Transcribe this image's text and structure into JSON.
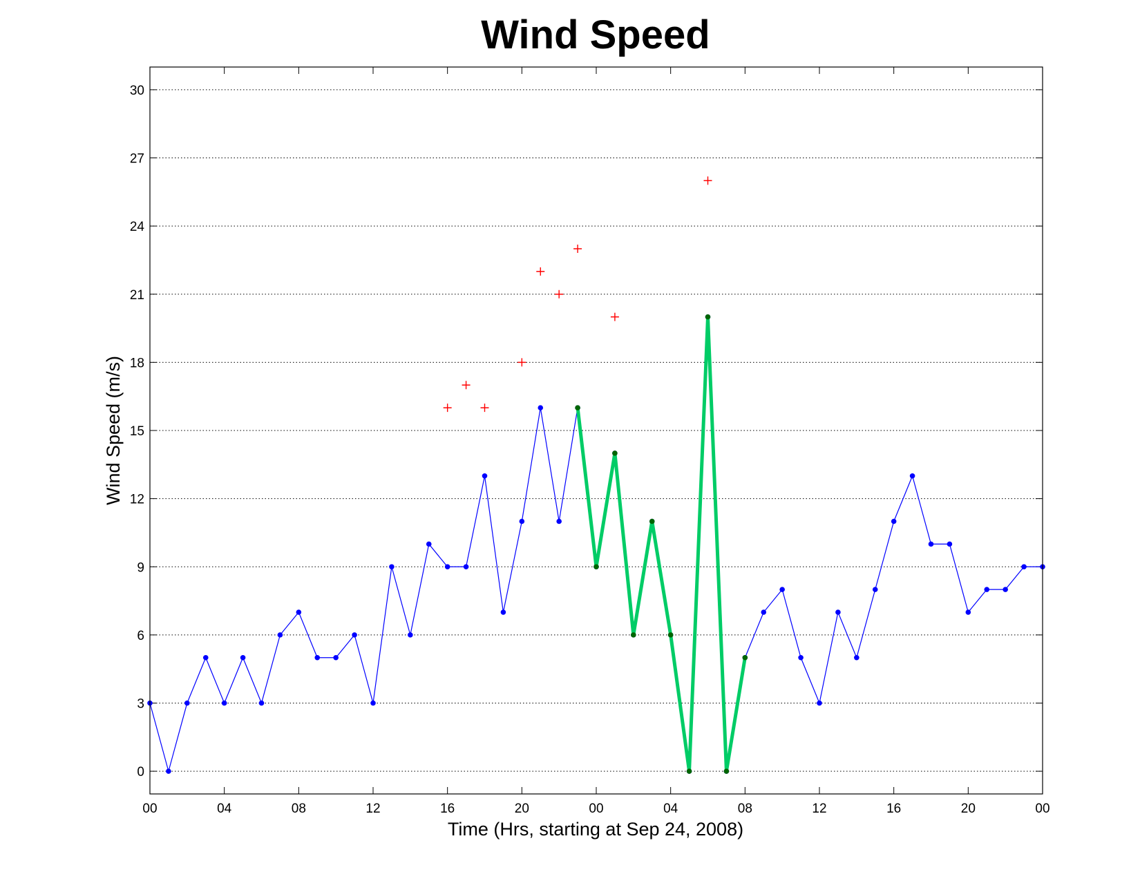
{
  "chart_data": {
    "type": "line",
    "title": "Wind Speed",
    "xlabel": "Time (Hrs, starting at Sep 24, 2008)",
    "ylabel": "Wind Speed (m/s)",
    "xlim": [
      0,
      48
    ],
    "ylim": [
      -1,
      31
    ],
    "x_tick_values": [
      0,
      4,
      8,
      12,
      16,
      20,
      24,
      28,
      32,
      36,
      40,
      44,
      48
    ],
    "x_tick_labels": [
      "00",
      "04",
      "08",
      "12",
      "16",
      "20",
      "00",
      "04",
      "08",
      "12",
      "16",
      "20",
      "00"
    ],
    "y_tick_values": [
      0,
      3,
      6,
      9,
      12,
      15,
      18,
      21,
      24,
      27,
      30
    ],
    "y_tick_labels": [
      "0",
      "3",
      "6",
      "9",
      "12",
      "15",
      "18",
      "21",
      "24",
      "27",
      "30"
    ],
    "grid": "y-dotted",
    "series": [
      {
        "style": "line-dots",
        "color": "#0000ff",
        "x": [
          0,
          1,
          2,
          3,
          4,
          5,
          6,
          7,
          8,
          9,
          10,
          11,
          12,
          13,
          14,
          15,
          16,
          17,
          18,
          19,
          20,
          21,
          22,
          23,
          24,
          25,
          26,
          27,
          28,
          29,
          30,
          31,
          32,
          33,
          34,
          35,
          36,
          37,
          38,
          39,
          40,
          41,
          42,
          43,
          44,
          45,
          46,
          47,
          48
        ],
        "y": [
          3,
          0,
          3,
          5,
          3,
          5,
          3,
          6,
          7,
          5,
          5,
          6,
          3,
          9,
          6,
          10,
          9,
          9,
          13,
          7,
          11,
          16,
          11,
          16,
          9,
          14,
          6,
          11,
          6,
          0,
          20,
          0,
          5,
          7,
          8,
          5,
          3,
          7,
          5,
          8,
          11,
          13,
          10,
          10,
          7,
          8,
          8,
          9,
          9
        ]
      },
      {
        "style": "thick-line",
        "color": "#00cc66",
        "marker_color": "#006600",
        "x": [
          23,
          24,
          25,
          26,
          27,
          28,
          29,
          30,
          31,
          32
        ],
        "y": [
          16,
          9,
          14,
          6,
          11,
          6,
          0,
          20,
          0,
          5
        ]
      },
      {
        "style": "plus-markers",
        "color": "#ff0000",
        "x": [
          16,
          17,
          18,
          20,
          21,
          22,
          23,
          25,
          30
        ],
        "y": [
          16,
          17,
          16,
          18,
          22,
          21,
          23,
          20,
          26
        ]
      }
    ]
  }
}
